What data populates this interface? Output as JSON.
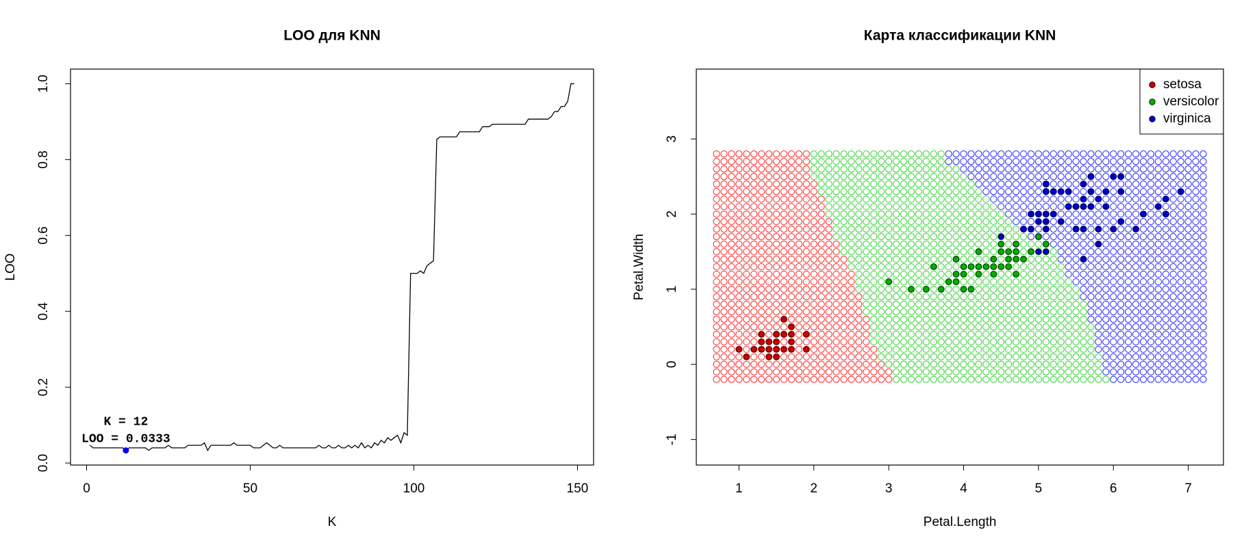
{
  "chart_data": [
    {
      "type": "line",
      "title": "LOO для KNN",
      "xlabel": "K",
      "ylabel": "LOO",
      "label_color": "#0000ff",
      "x": [
        1,
        2,
        3,
        4,
        5,
        6,
        7,
        8,
        9,
        10,
        11,
        12,
        13,
        14,
        15,
        16,
        17,
        18,
        19,
        20,
        21,
        22,
        23,
        24,
        25,
        26,
        27,
        28,
        29,
        30,
        31,
        32,
        33,
        34,
        35,
        36,
        37,
        38,
        39,
        40,
        41,
        42,
        43,
        44,
        45,
        46,
        47,
        48,
        49,
        50,
        51,
        52,
        53,
        54,
        55,
        56,
        57,
        58,
        59,
        60,
        61,
        62,
        63,
        64,
        65,
        66,
        67,
        68,
        69,
        70,
        71,
        72,
        73,
        74,
        75,
        76,
        77,
        78,
        79,
        80,
        81,
        82,
        83,
        84,
        85,
        86,
        87,
        88,
        89,
        90,
        91,
        92,
        93,
        94,
        95,
        96,
        97,
        98,
        99,
        100,
        101,
        102,
        103,
        104,
        105,
        106,
        107,
        108,
        109,
        110,
        111,
        112,
        113,
        114,
        115,
        116,
        117,
        118,
        119,
        120,
        121,
        122,
        123,
        124,
        125,
        126,
        127,
        128,
        129,
        130,
        131,
        132,
        133,
        134,
        135,
        136,
        137,
        138,
        139,
        140,
        141,
        142,
        143,
        144,
        145,
        146,
        147,
        148,
        149
      ],
      "values": [
        0.0467,
        0.04,
        0.04,
        0.04,
        0.04,
        0.04,
        0.04,
        0.04,
        0.04,
        0.04,
        0.04,
        0.0333,
        0.04,
        0.04,
        0.04,
        0.04,
        0.04,
        0.04,
        0.0333,
        0.04,
        0.04,
        0.04,
        0.04,
        0.04,
        0.0467,
        0.04,
        0.04,
        0.04,
        0.04,
        0.04,
        0.0467,
        0.0467,
        0.0467,
        0.0467,
        0.0467,
        0.0533,
        0.0333,
        0.0467,
        0.0467,
        0.0467,
        0.0467,
        0.0467,
        0.0467,
        0.0467,
        0.0533,
        0.0467,
        0.0467,
        0.0467,
        0.0467,
        0.0467,
        0.04,
        0.04,
        0.04,
        0.0467,
        0.0533,
        0.0467,
        0.04,
        0.04,
        0.0467,
        0.04,
        0.04,
        0.04,
        0.04,
        0.04,
        0.04,
        0.04,
        0.04,
        0.04,
        0.04,
        0.04,
        0.0467,
        0.04,
        0.04,
        0.0467,
        0.04,
        0.04,
        0.0467,
        0.04,
        0.04,
        0.0467,
        0.04,
        0.0467,
        0.04,
        0.0533,
        0.04,
        0.0467,
        0.04,
        0.0533,
        0.0467,
        0.06,
        0.0533,
        0.0667,
        0.06,
        0.0667,
        0.0733,
        0.0533,
        0.08,
        0.0733,
        0.5,
        0.5,
        0.5,
        0.5067,
        0.5,
        0.52,
        0.5267,
        0.5333,
        0.8533,
        0.86,
        0.86,
        0.86,
        0.86,
        0.86,
        0.86,
        0.8733,
        0.8733,
        0.8733,
        0.8733,
        0.8733,
        0.8733,
        0.8733,
        0.8867,
        0.8867,
        0.8867,
        0.8933,
        0.8933,
        0.8933,
        0.8933,
        0.8933,
        0.8933,
        0.8933,
        0.8933,
        0.8933,
        0.8933,
        0.8933,
        0.9067,
        0.9067,
        0.9067,
        0.9067,
        0.9067,
        0.9067,
        0.9067,
        0.9133,
        0.9267,
        0.9267,
        0.94,
        0.94,
        0.9533,
        1,
        1
      ],
      "color": "#000000",
      "annotation": {
        "x": 12,
        "y": 0.0333,
        "color": "#0000ff",
        "labels": [
          "K = 12",
          "LOO = 0.0333"
        ]
      },
      "xlim": [
        -4.92,
        154.92
      ],
      "ylim": [
        -0.0053,
        1.0387
      ],
      "xticks": [
        0,
        50,
        100,
        150
      ],
      "yticks": [
        {
          "value": 0,
          "label": "0.0"
        },
        0.2,
        0.4,
        0.6,
        0.8,
        {
          "value": 1,
          "label": "1.0"
        }
      ]
    },
    {
      "type": "scatter",
      "title": "Карта классификации KNN",
      "xlabel": "Petal.Length",
      "ylabel": "Petal.Width",
      "label_color": "#0000ff",
      "xlim": [
        0.43,
        7.47
      ],
      "ylim": [
        -1.34,
        3.93
      ],
      "xticks": [
        1,
        2,
        3,
        4,
        5,
        6,
        7
      ],
      "yticks": [
        -1,
        0,
        1,
        2,
        3
      ],
      "legend": "topright",
      "series": [
        {
          "name": "setosa",
          "color": "#cc0000",
          "map_color": "#ff2020",
          "x": [
            1.0,
            1.1,
            1.2,
            1.3,
            1.3,
            1.3,
            1.4,
            1.4,
            1.4,
            1.5,
            1.5,
            1.5,
            1.5,
            1.6,
            1.6,
            1.6,
            1.7,
            1.7,
            1.7,
            1.7,
            1.9,
            1.9
          ],
          "values": [
            0.2,
            0.1,
            0.2,
            0.2,
            0.3,
            0.4,
            0.1,
            0.2,
            0.3,
            0.1,
            0.2,
            0.3,
            0.4,
            0.2,
            0.4,
            0.6,
            0.2,
            0.3,
            0.4,
            0.5,
            0.2,
            0.4
          ]
        },
        {
          "name": "versicolor",
          "color": "#00b000",
          "map_color": "#30d030",
          "x": [
            3.0,
            3.3,
            3.5,
            3.6,
            3.7,
            3.8,
            3.9,
            3.9,
            3.9,
            4.0,
            4.0,
            4.0,
            4.1,
            4.1,
            4.2,
            4.2,
            4.2,
            4.3,
            4.4,
            4.4,
            4.4,
            4.5,
            4.5,
            4.5,
            4.6,
            4.6,
            4.6,
            4.7,
            4.7,
            4.7,
            4.7,
            4.8,
            4.8,
            4.9,
            5.0,
            5.1
          ],
          "values": [
            1.1,
            1.0,
            1.0,
            1.3,
            1.0,
            1.1,
            1.1,
            1.2,
            1.4,
            1.0,
            1.2,
            1.3,
            1.0,
            1.3,
            1.2,
            1.3,
            1.5,
            1.3,
            1.2,
            1.3,
            1.4,
            1.3,
            1.5,
            1.6,
            1.3,
            1.4,
            1.5,
            1.2,
            1.4,
            1.5,
            1.6,
            1.4,
            1.8,
            1.5,
            1.7,
            1.6
          ]
        },
        {
          "name": "virginica",
          "color": "#0000cc",
          "map_color": "#2020ff",
          "x": [
            4.5,
            4.8,
            4.9,
            4.9,
            5.0,
            5.0,
            5.0,
            5.1,
            5.1,
            5.1,
            5.1,
            5.1,
            5.1,
            5.2,
            5.2,
            5.3,
            5.3,
            5.4,
            5.4,
            5.5,
            5.5,
            5.6,
            5.6,
            5.6,
            5.6,
            5.6,
            5.7,
            5.7,
            5.7,
            5.8,
            5.8,
            5.8,
            5.9,
            5.9,
            6.0,
            6.0,
            6.1,
            6.1,
            6.1,
            6.3,
            6.4,
            6.6,
            6.7,
            6.7,
            6.9
          ],
          "values": [
            1.7,
            1.8,
            1.8,
            2.0,
            1.5,
            1.9,
            2.0,
            1.5,
            1.8,
            1.9,
            2.0,
            2.3,
            2.4,
            2.0,
            2.3,
            1.9,
            2.3,
            2.1,
            2.3,
            1.8,
            2.1,
            1.4,
            1.8,
            2.1,
            2.2,
            2.4,
            2.1,
            2.3,
            2.5,
            1.6,
            1.8,
            2.2,
            2.1,
            2.3,
            1.8,
            2.5,
            1.9,
            2.3,
            2.5,
            1.8,
            2.0,
            2.1,
            2.0,
            2.2,
            2.3
          ]
        }
      ],
      "map": {
        "x_range": [
          0.7,
          7.2
        ],
        "step": 0.1,
        "rows": [
          2.8,
          2.7,
          2.6,
          2.5,
          2.4,
          2.3,
          2.2,
          2.1,
          2.0,
          1.9,
          1.8,
          1.7,
          1.6,
          1.5,
          1.4,
          1.3,
          1.2,
          1.1,
          1.0,
          0.9,
          0.8,
          0.7,
          0.6,
          0.5,
          0.4,
          0.3,
          0.2,
          0.1,
          0,
          -0.1,
          -0.2
        ],
        "setosa_to": [
          1.9,
          1.9,
          1.9,
          1.9,
          2.0,
          2.0,
          2.1,
          2.1,
          2.1,
          2.2,
          2.2,
          2.2,
          2.3,
          2.3,
          2.4,
          2.4,
          2.5,
          2.5,
          2.5,
          2.6,
          2.6,
          2.6,
          2.7,
          2.7,
          2.7,
          2.7,
          2.8,
          2.8,
          2.9,
          3.0,
          3.0
        ],
        "versicolor_to": [
          3.7,
          3.7,
          3.9,
          4.0,
          4.1,
          4.2,
          4.3,
          4.4,
          4.5,
          4.6,
          4.7,
          4.8,
          5.1,
          5.2,
          5.2,
          5.3,
          5.3,
          5.4,
          5.5,
          5.5,
          5.6,
          5.6,
          5.6,
          5.7,
          5.7,
          5.7,
          5.7,
          5.8,
          5.8,
          5.8,
          5.9
        ]
      }
    }
  ]
}
